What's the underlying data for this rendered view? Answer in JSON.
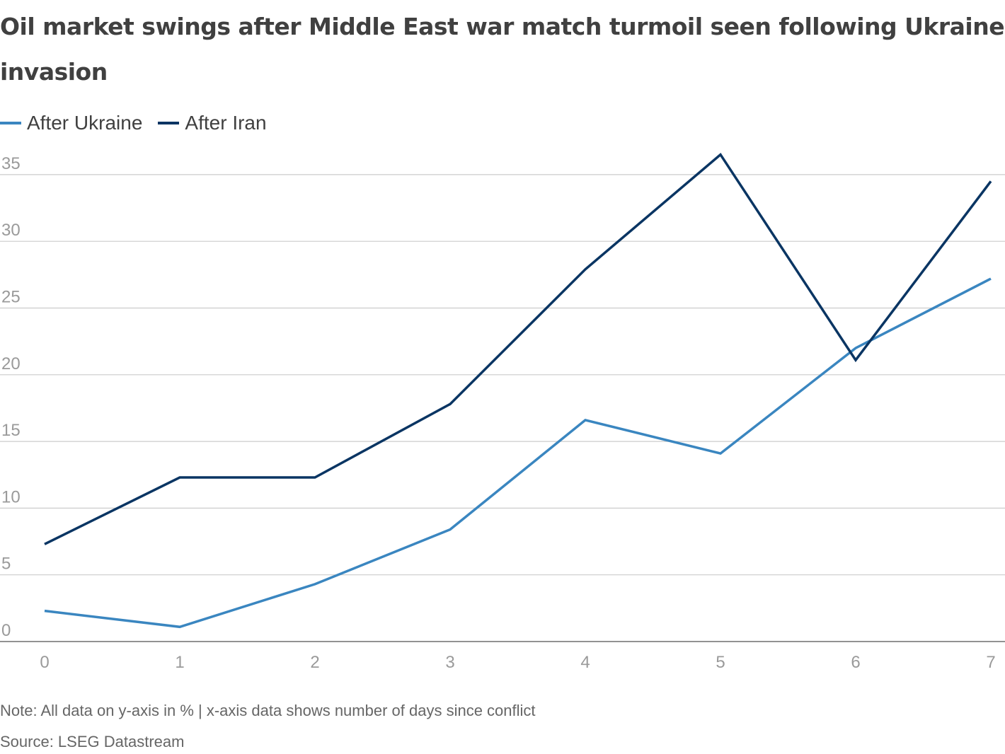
{
  "header": {
    "title": "Oil market swings after Middle East war match turmoil seen following Ukraine invasion"
  },
  "legend": {
    "items": [
      {
        "label": "After Ukraine",
        "color": "#3a86c0"
      },
      {
        "label": "After Iran",
        "color": "#0a3563"
      }
    ]
  },
  "chart_data": {
    "type": "line",
    "title": "Oil market swings after Middle East war match turmoil seen following Ukraine invasion",
    "xlabel": "",
    "ylabel": "",
    "x": [
      0,
      1,
      2,
      3,
      4,
      5,
      6,
      7
    ],
    "x_tick_labels": [
      "0",
      "1",
      "2",
      "3",
      "4",
      "5",
      "6",
      "7"
    ],
    "y_tick_labels": [
      "0",
      "5",
      "10",
      "15",
      "20",
      "25",
      "30",
      "35"
    ],
    "xlim": [
      0,
      7
    ],
    "ylim": [
      0,
      36.5
    ],
    "grid": "horizontal",
    "legend_position": "top-left",
    "series": [
      {
        "name": "After Ukraine",
        "color": "#3a86c0",
        "values": [
          2.3,
          1.1,
          4.3,
          8.4,
          16.6,
          14.1,
          22.0,
          27.2
        ]
      },
      {
        "name": "After Iran",
        "color": "#0a3563",
        "values": [
          7.3,
          12.3,
          12.3,
          17.8,
          27.9,
          36.5,
          21.1,
          34.5
        ]
      }
    ]
  },
  "footer": {
    "note": "Note: All data on y-axis in % | x-axis data shows number of days since conflict",
    "source": "Source: LSEG Datastream"
  }
}
